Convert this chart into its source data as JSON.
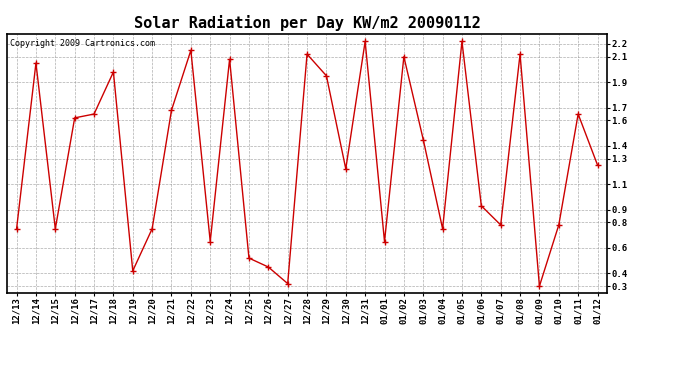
{
  "title": "Solar Radiation per Day KW/m2 20090112",
  "copyright": "Copyright 2009 Cartronics.com",
  "labels": [
    "12/13",
    "12/14",
    "12/15",
    "12/16",
    "12/17",
    "12/18",
    "12/19",
    "12/20",
    "12/21",
    "12/22",
    "12/23",
    "12/24",
    "12/25",
    "12/26",
    "12/27",
    "12/28",
    "12/29",
    "12/30",
    "12/31",
    "01/01",
    "01/02",
    "01/03",
    "01/04",
    "01/05",
    "01/06",
    "01/07",
    "01/08",
    "01/09",
    "01/10",
    "01/11",
    "01/12"
  ],
  "values": [
    0.75,
    2.05,
    0.75,
    1.62,
    1.65,
    1.98,
    0.42,
    0.75,
    1.68,
    2.15,
    0.65,
    2.08,
    0.52,
    0.45,
    0.32,
    2.12,
    1.95,
    1.22,
    2.22,
    0.65,
    2.1,
    1.45,
    0.75,
    2.22,
    0.93,
    0.78,
    2.12,
    0.3,
    0.78,
    1.65,
    1.25
  ],
  "line_color": "#cc0000",
  "marker": "+",
  "marker_color": "#cc0000",
  "background_color": "#ffffff",
  "plot_bg_color": "#ffffff",
  "grid_color": "#999999",
  "yticks": [
    0.3,
    0.4,
    0.6,
    0.8,
    0.9,
    1.1,
    1.3,
    1.4,
    1.6,
    1.7,
    1.9,
    2.1,
    2.2
  ],
  "ylim": [
    0.25,
    2.28
  ],
  "title_fontsize": 11,
  "tick_fontsize": 6.5,
  "copyright_fontsize": 6
}
